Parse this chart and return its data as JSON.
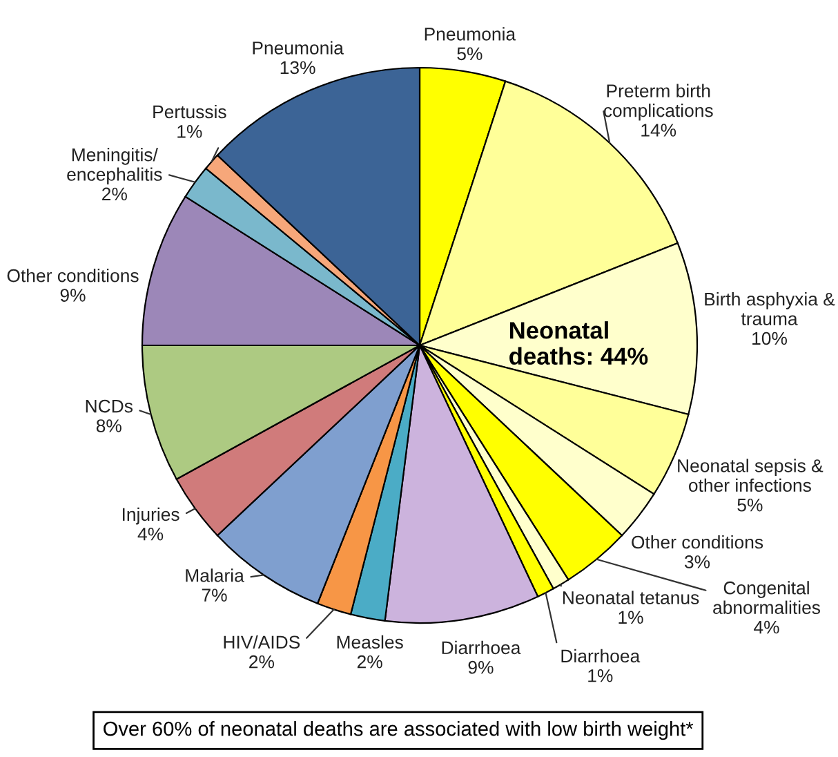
{
  "chart_data": {
    "type": "pie",
    "categories": [
      "Pneumonia",
      "Preterm birth\ncomplications",
      "Birth asphyxia &\ntrauma",
      "Neonatal sepsis &\nother infections",
      "Other conditions",
      "Congenital\nabnormalities",
      "Neonatal tetanus",
      "Diarrhoea",
      "Diarrhoea",
      "Measles",
      "HIV/AIDS",
      "Malaria",
      "Injuries",
      "NCDs",
      "Other conditions",
      "Meningitis/\nencephalitis",
      "Pertussis",
      "Pneumonia"
    ],
    "values": [
      5,
      14,
      10,
      5,
      3,
      4,
      1,
      1,
      9,
      2,
      2,
      7,
      4,
      8,
      9,
      2,
      1,
      13
    ],
    "value_labels": [
      "5%",
      "14%",
      "10%",
      "5%",
      "3%",
      "4%",
      "1%",
      "1%",
      "9%",
      "2%",
      "2%",
      "7%",
      "4%",
      "8%",
      "9%",
      "2%",
      "1%",
      "13%"
    ],
    "colors": [
      "#ffff00",
      "#ffff99",
      "#ffffcc",
      "#ffff99",
      "#ffffcc",
      "#ffff00",
      "#ffffcc",
      "#ffff00",
      "#ccb3dd",
      "#4bacc6",
      "#f79646",
      "#7f9fcf",
      "#d07b7b",
      "#adca82",
      "#9c87b8",
      "#7ab8cc",
      "#f6a77a",
      "#3c6496"
    ],
    "annotations": [
      "Neonatal deaths: 44%",
      "Over 60% of neonatal deaths are associated with low birth weight*"
    ]
  }
}
